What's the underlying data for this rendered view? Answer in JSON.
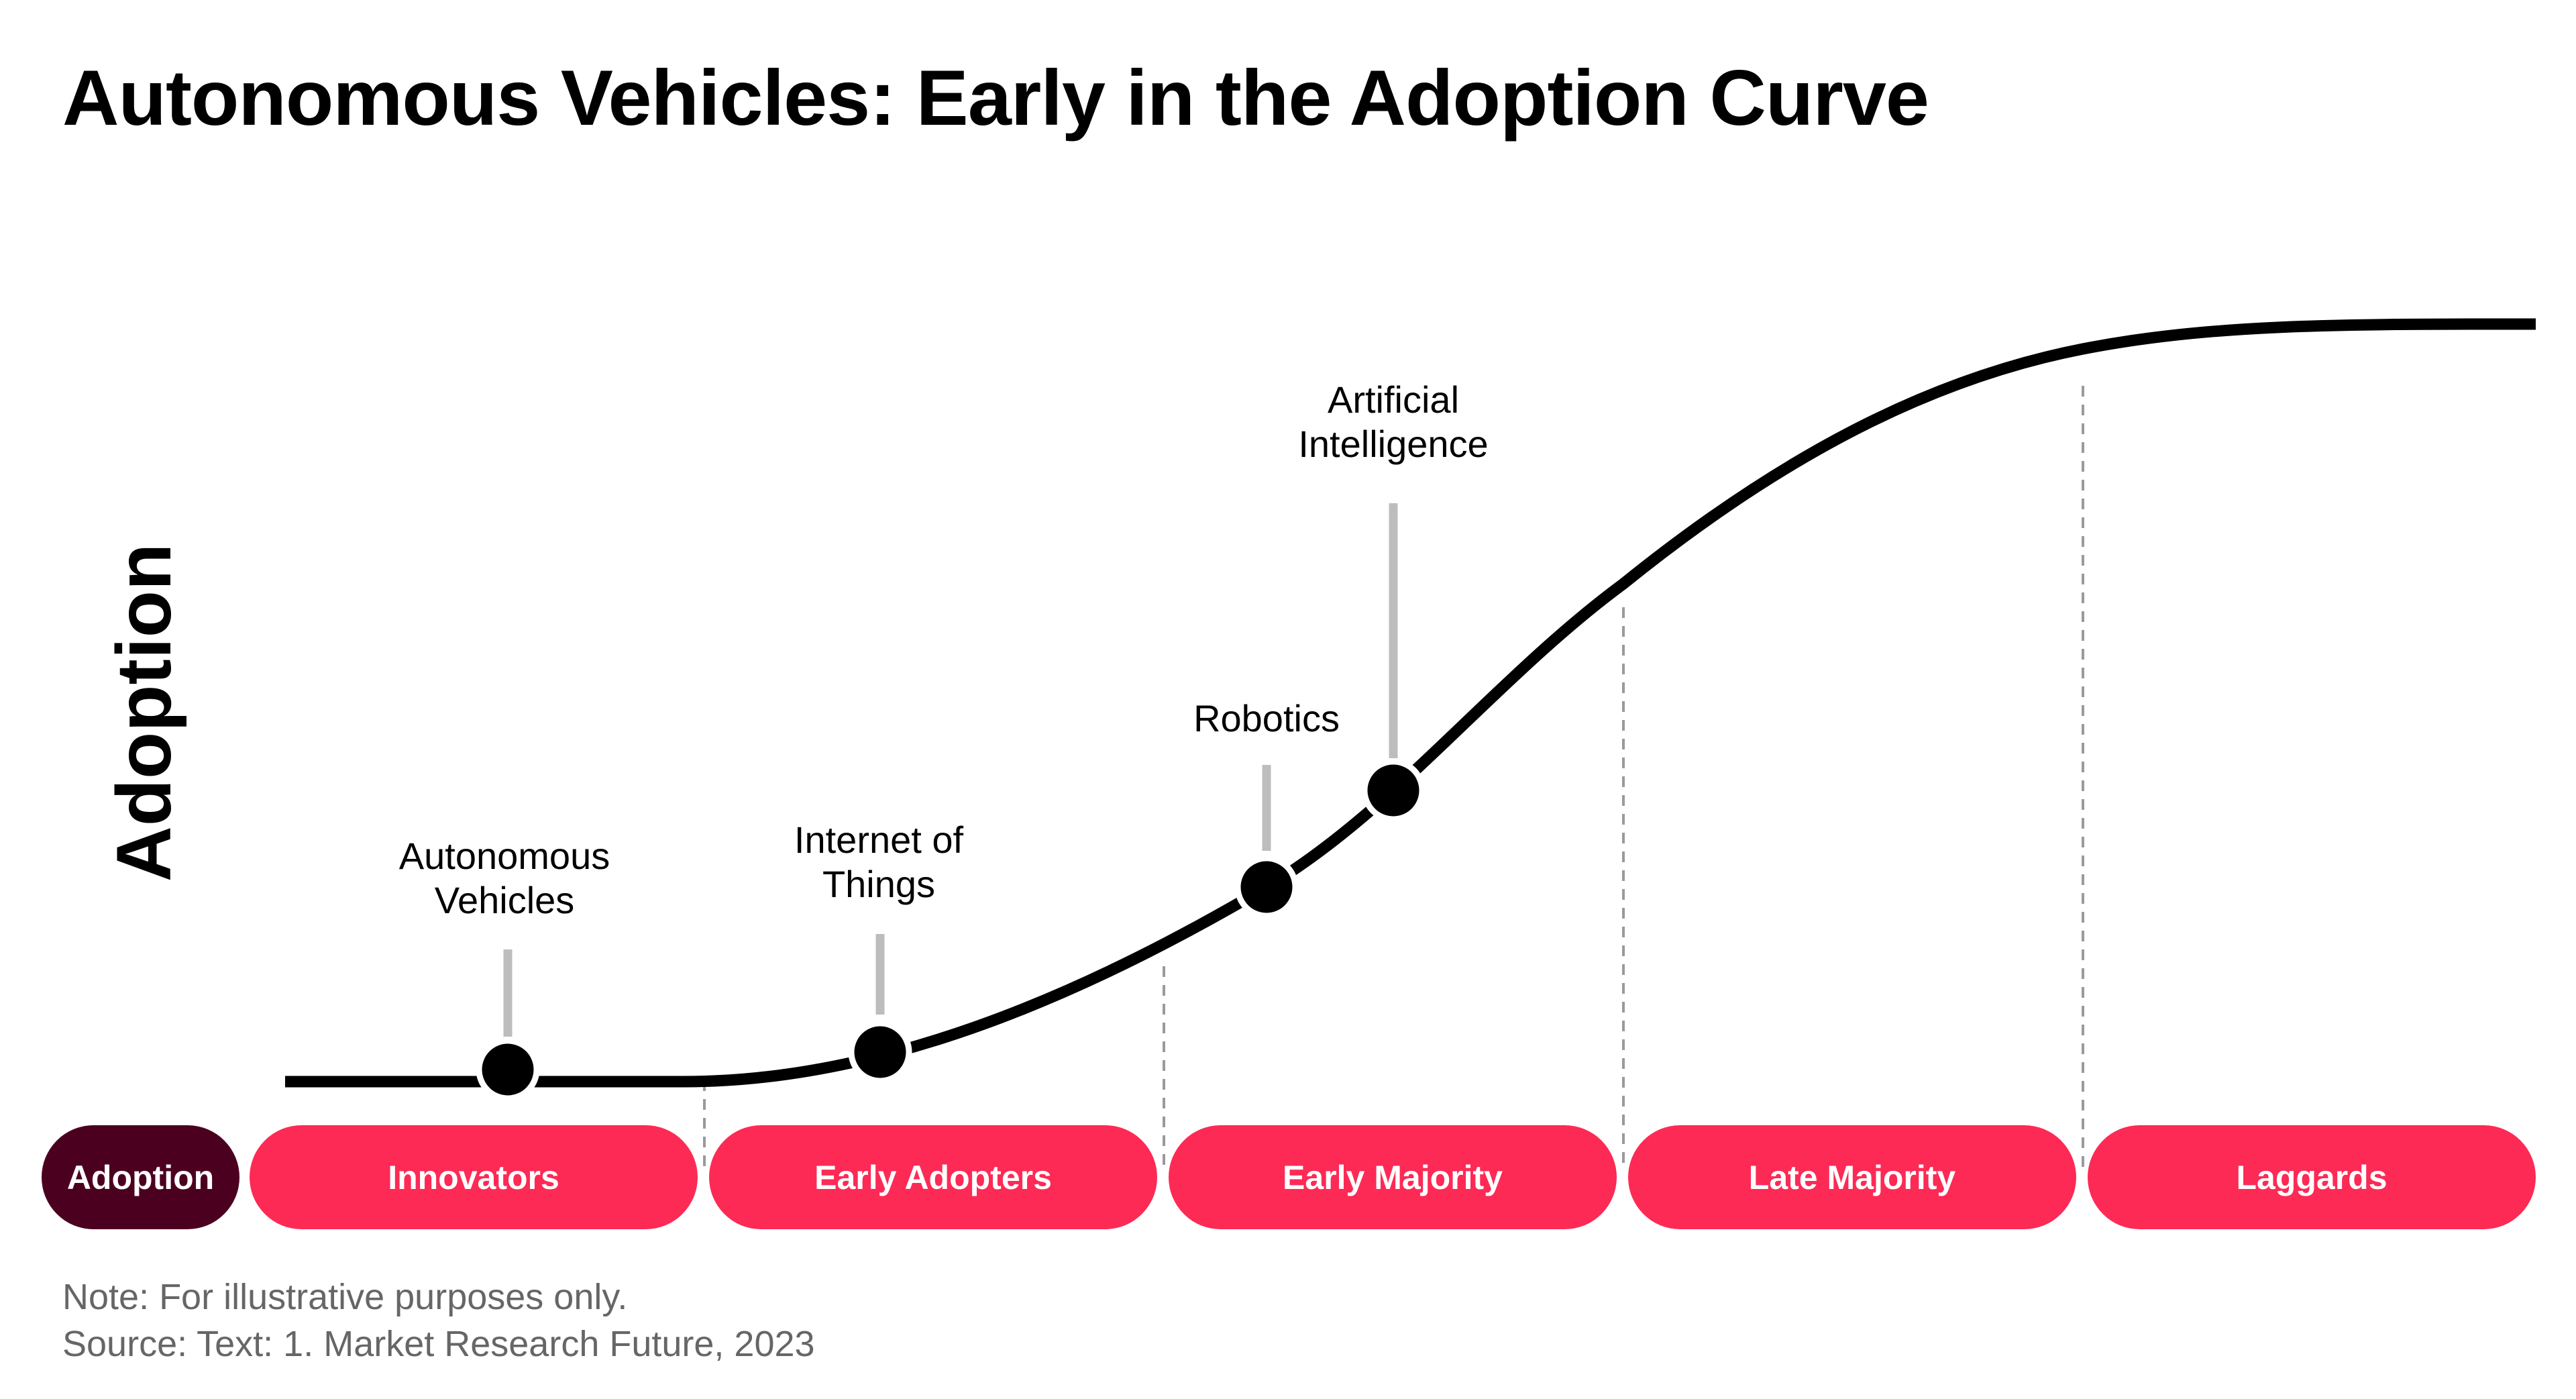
{
  "title": "Autonomous Vehicles: Early in the Adoption Curve",
  "y_axis_label": "Adoption",
  "legend_label": "Adoption",
  "segments": [
    "Innovators",
    "Early Adopters",
    "Early Majority",
    "Late Majority",
    "Laggards"
  ],
  "markers": [
    {
      "lines": [
        "Autonomous",
        "Vehicles"
      ]
    },
    {
      "lines": [
        "Internet of",
        "Things"
      ]
    },
    {
      "lines": [
        "Robotics"
      ]
    },
    {
      "lines": [
        "Artificial",
        "Intelligence"
      ]
    }
  ],
  "note": "Note: For illustrative purposes only.",
  "source": "Source: Text: 1. Market Research Future, 2023",
  "colors": {
    "segment": "#fd2a55",
    "legend": "#4c0020",
    "curve": "#000000",
    "leader": "#bdbdbd",
    "divider": "#9a9a9a"
  }
}
